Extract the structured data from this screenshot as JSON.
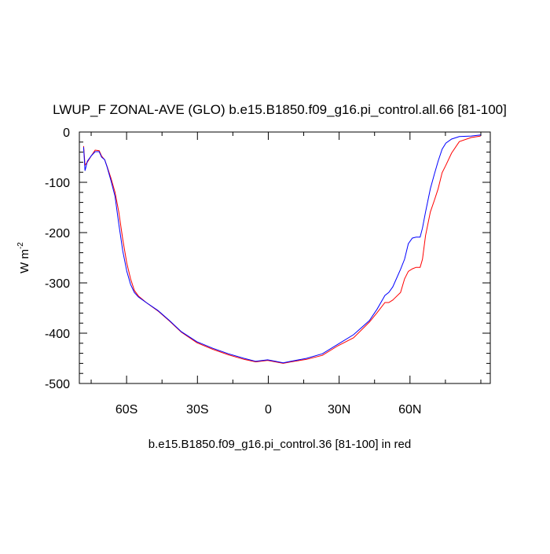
{
  "chart_data": {
    "type": "line",
    "title": "LWUP_F ZONAL-AVE (GLO) b.e15.B1850.f09_g16.pi_control.all.66 [81-100]",
    "xlabel": "b.e15.B1850.f09_g16.pi_control.36 [81-100] in red",
    "ylabel": "W m",
    "ylabel_superscript": "-2",
    "xlim": [
      -80,
      94
    ],
    "ylim": [
      -500,
      0
    ],
    "xticks": [
      {
        "value": -60,
        "label": "60S"
      },
      {
        "value": -30,
        "label": "30S"
      },
      0,
      {
        "value": 30,
        "label": "30N"
      },
      {
        "value": 60,
        "label": "60N"
      }
    ],
    "xminorticks": [
      -75,
      -45,
      -15,
      15,
      45,
      75,
      90
    ],
    "yticks": [
      0,
      -100,
      -200,
      -300,
      -400,
      -500
    ],
    "yminorticks": [
      -20,
      -40,
      -60,
      -80,
      -120,
      -140,
      -160,
      -180,
      -220,
      -240,
      -260,
      -280,
      -320,
      -340,
      -360,
      -380,
      -420,
      -440,
      -460,
      -480
    ],
    "x": [
      -78.2,
      -77.6,
      -76.6,
      -74.9,
      -73.3,
      -71.6,
      -70.6,
      -69.3,
      -68.3,
      -66.6,
      -64.9,
      -63.3,
      -61.6,
      -59.9,
      -58.3,
      -56.7,
      -55.0,
      -51.7,
      -46.7,
      -41.8,
      -36.8,
      -30.2,
      -23.5,
      -16.9,
      -10.3,
      -5.3,
      -0.3,
      3.0,
      6.3,
      9.6,
      16.2,
      22.9,
      29.5,
      36.1,
      42.8,
      46.1,
      49.4,
      51.0,
      52.7,
      56.0,
      57.7,
      59.3,
      61.0,
      62.6,
      64.3,
      65.3,
      66.6,
      68.6,
      70.3,
      71.9,
      73.6,
      75.2,
      77.6,
      80.9,
      85.9,
      89.9
    ],
    "series": [
      {
        "color": "#0000ff",
        "values": [
          -30,
          -77,
          -58,
          -47,
          -39,
          -39,
          -50,
          -55,
          -69,
          -97,
          -128,
          -183,
          -237,
          -277,
          -303,
          -319,
          -328,
          -339,
          -355,
          -375,
          -397,
          -417,
          -430,
          -441,
          -450,
          -456,
          -453,
          -456,
          -459,
          -456,
          -450,
          -441,
          -422,
          -403,
          -375,
          -352,
          -325,
          -319,
          -308,
          -273,
          -253,
          -222,
          -211,
          -209,
          -209,
          -191,
          -159,
          -113,
          -84,
          -58,
          -34,
          -22,
          -14,
          -9,
          -8,
          -6
        ]
      },
      {
        "color": "#ff0000",
        "values": [
          -28,
          -66,
          -60,
          -47,
          -36,
          -37,
          -48,
          -55,
          -68,
          -92,
          -120,
          -159,
          -214,
          -261,
          -292,
          -315,
          -326,
          -339,
          -356,
          -376,
          -398,
          -419,
          -432,
          -443,
          -452,
          -457,
          -454,
          -457,
          -460,
          -457,
          -452,
          -444,
          -425,
          -409,
          -378,
          -359,
          -339,
          -339,
          -334,
          -319,
          -292,
          -277,
          -272,
          -269,
          -269,
          -253,
          -206,
          -159,
          -136,
          -113,
          -81,
          -66,
          -42,
          -19,
          -11,
          -8
        ]
      }
    ]
  }
}
